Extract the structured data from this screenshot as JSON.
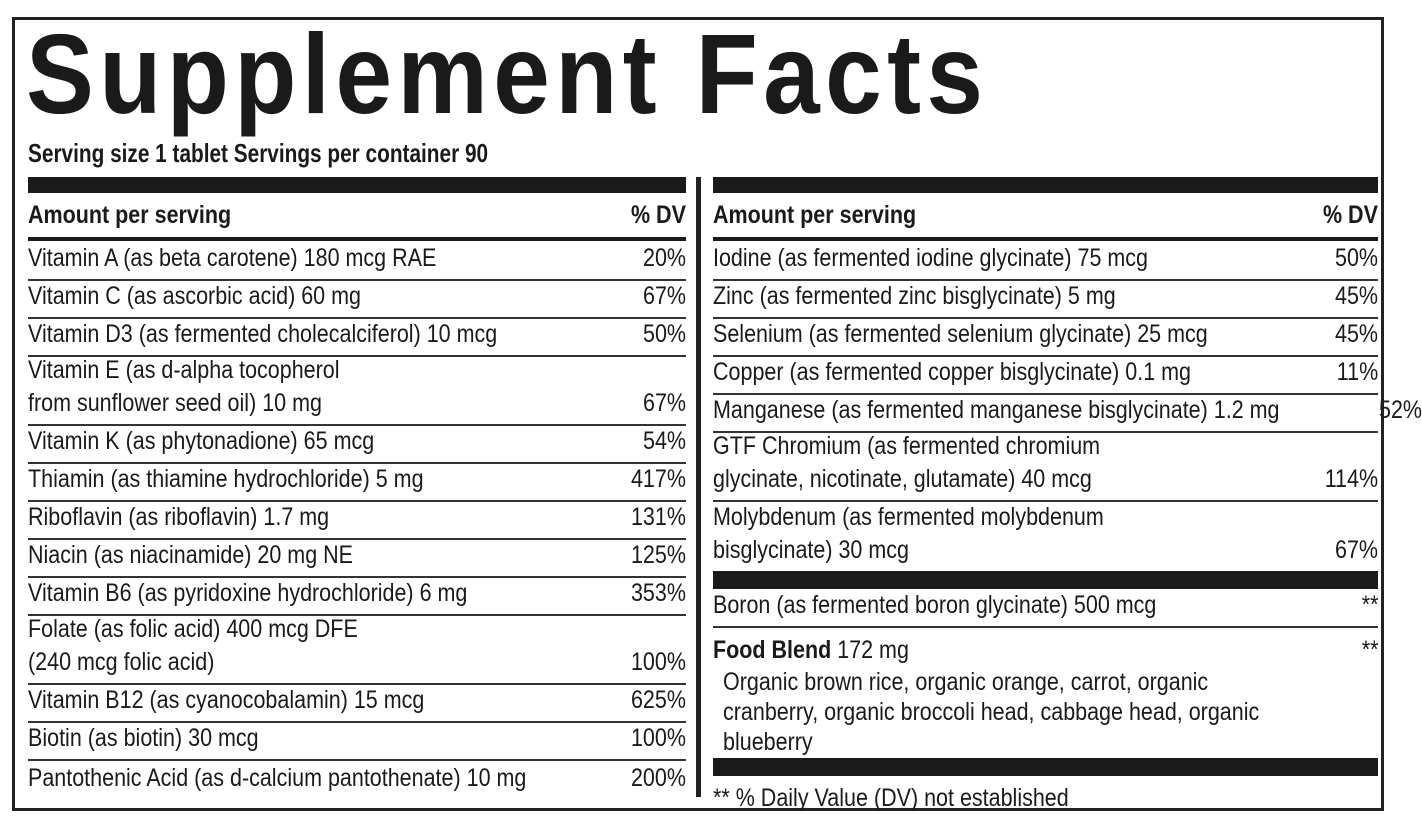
{
  "title": "Supplement Facts",
  "serving": "Serving size 1 tablet  Servings per container 90",
  "left": {
    "header_amount": "Amount per serving",
    "header_dv": "% DV",
    "rows": [
      {
        "lines": [
          "Vitamin A (as beta carotene) 180 mcg RAE"
        ],
        "dv": "20%"
      },
      {
        "lines": [
          "Vitamin C (as ascorbic acid) 60 mg"
        ],
        "dv": "67%"
      },
      {
        "lines": [
          "Vitamin D3 (as fermented cholecalciferol) 10 mcg"
        ],
        "dv": "50%"
      },
      {
        "lines": [
          "Vitamin E (as d-alpha tocopherol",
          "from sunflower seed oil) 10 mg"
        ],
        "dv": "67%"
      },
      {
        "lines": [
          "Vitamin K (as phytonadione) 65 mcg"
        ],
        "dv": "54%"
      },
      {
        "lines": [
          "Thiamin (as thiamine hydrochloride) 5 mg"
        ],
        "dv": "417%"
      },
      {
        "lines": [
          "Riboflavin (as riboflavin) 1.7 mg"
        ],
        "dv": "131%"
      },
      {
        "lines": [
          "Niacin (as niacinamide) 20 mg NE"
        ],
        "dv": "125%"
      },
      {
        "lines": [
          "Vitamin B6 (as pyridoxine hydrochloride) 6 mg"
        ],
        "dv": "353%"
      },
      {
        "lines": [
          "Folate (as folic acid) 400 mcg DFE",
          "(240 mcg folic acid)"
        ],
        "dv": "100%"
      },
      {
        "lines": [
          "Vitamin B12 (as cyanocobalamin) 15 mcg"
        ],
        "dv": "625%"
      },
      {
        "lines": [
          "Biotin (as biotin) 30 mcg"
        ],
        "dv": "100%"
      },
      {
        "lines": [
          "Pantothenic Acid (as d-calcium pantothenate) 10 mg"
        ],
        "dv": "200%"
      }
    ]
  },
  "right": {
    "header_amount": "Amount per serving",
    "header_dv": "% DV",
    "rows": [
      {
        "lines": [
          "Iodine (as fermented iodine glycinate) 75 mcg"
        ],
        "dv": "50%"
      },
      {
        "lines": [
          "Zinc (as fermented zinc bisglycinate) 5 mg"
        ],
        "dv": "45%"
      },
      {
        "lines": [
          "Selenium (as fermented selenium glycinate) 25 mcg"
        ],
        "dv": "45%"
      },
      {
        "lines": [
          "Copper (as fermented copper bisglycinate) 0.1 mg"
        ],
        "dv": "11%"
      },
      {
        "lines": [
          "Manganese (as fermented manganese bisglycinate) 1.2 mg"
        ],
        "dv": "52%"
      },
      {
        "lines": [
          "GTF Chromium (as fermented chromium",
          "glycinate, nicotinate, glutamate) 40 mcg"
        ],
        "dv": "114%"
      },
      {
        "lines": [
          "Molybdenum (as fermented molybdenum",
          "bisglycinate) 30 mcg"
        ],
        "dv": "67%"
      }
    ],
    "boron": {
      "name": "Boron (as fermented boron glycinate) 500 mcg",
      "dv": "**"
    },
    "food_blend": {
      "name": "Food Blend",
      "amount": "172 mg",
      "dv": "**",
      "lines": [
        "Organic brown rice, organic orange, carrot, organic",
        "cranberry, organic broccoli head, cabbage head, organic",
        "blueberry"
      ]
    },
    "footnote": "** % Daily Value (DV) not established"
  }
}
